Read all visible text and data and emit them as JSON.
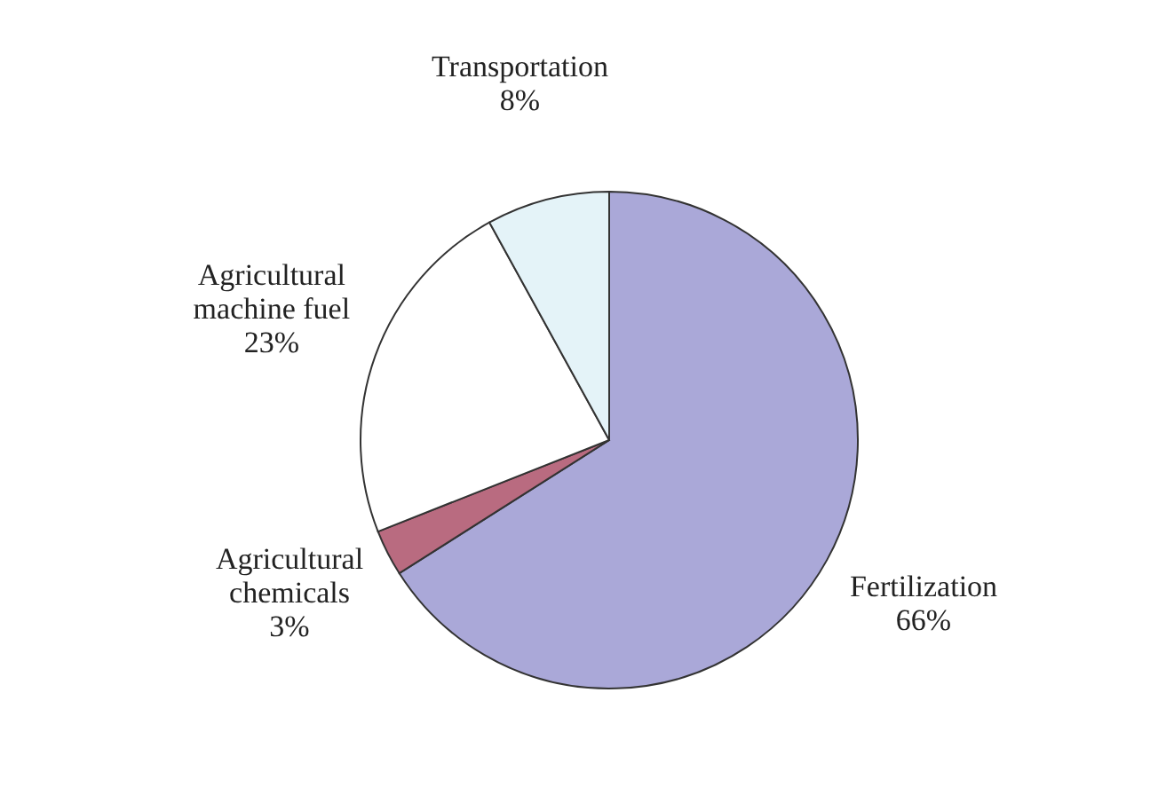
{
  "chart_data": {
    "type": "pie",
    "categories": [
      "Fertilization",
      "Agricultural chemicals",
      "Agricultural machine fuel",
      "Transportation"
    ],
    "values": [
      66,
      3,
      23,
      8
    ],
    "colors": [
      "#aaa8d8",
      "#b96b80",
      "#ffffff",
      "#e4f3f8"
    ],
    "value_labels": [
      "66%",
      "3%",
      "23%",
      "8%"
    ],
    "legend": false
  }
}
